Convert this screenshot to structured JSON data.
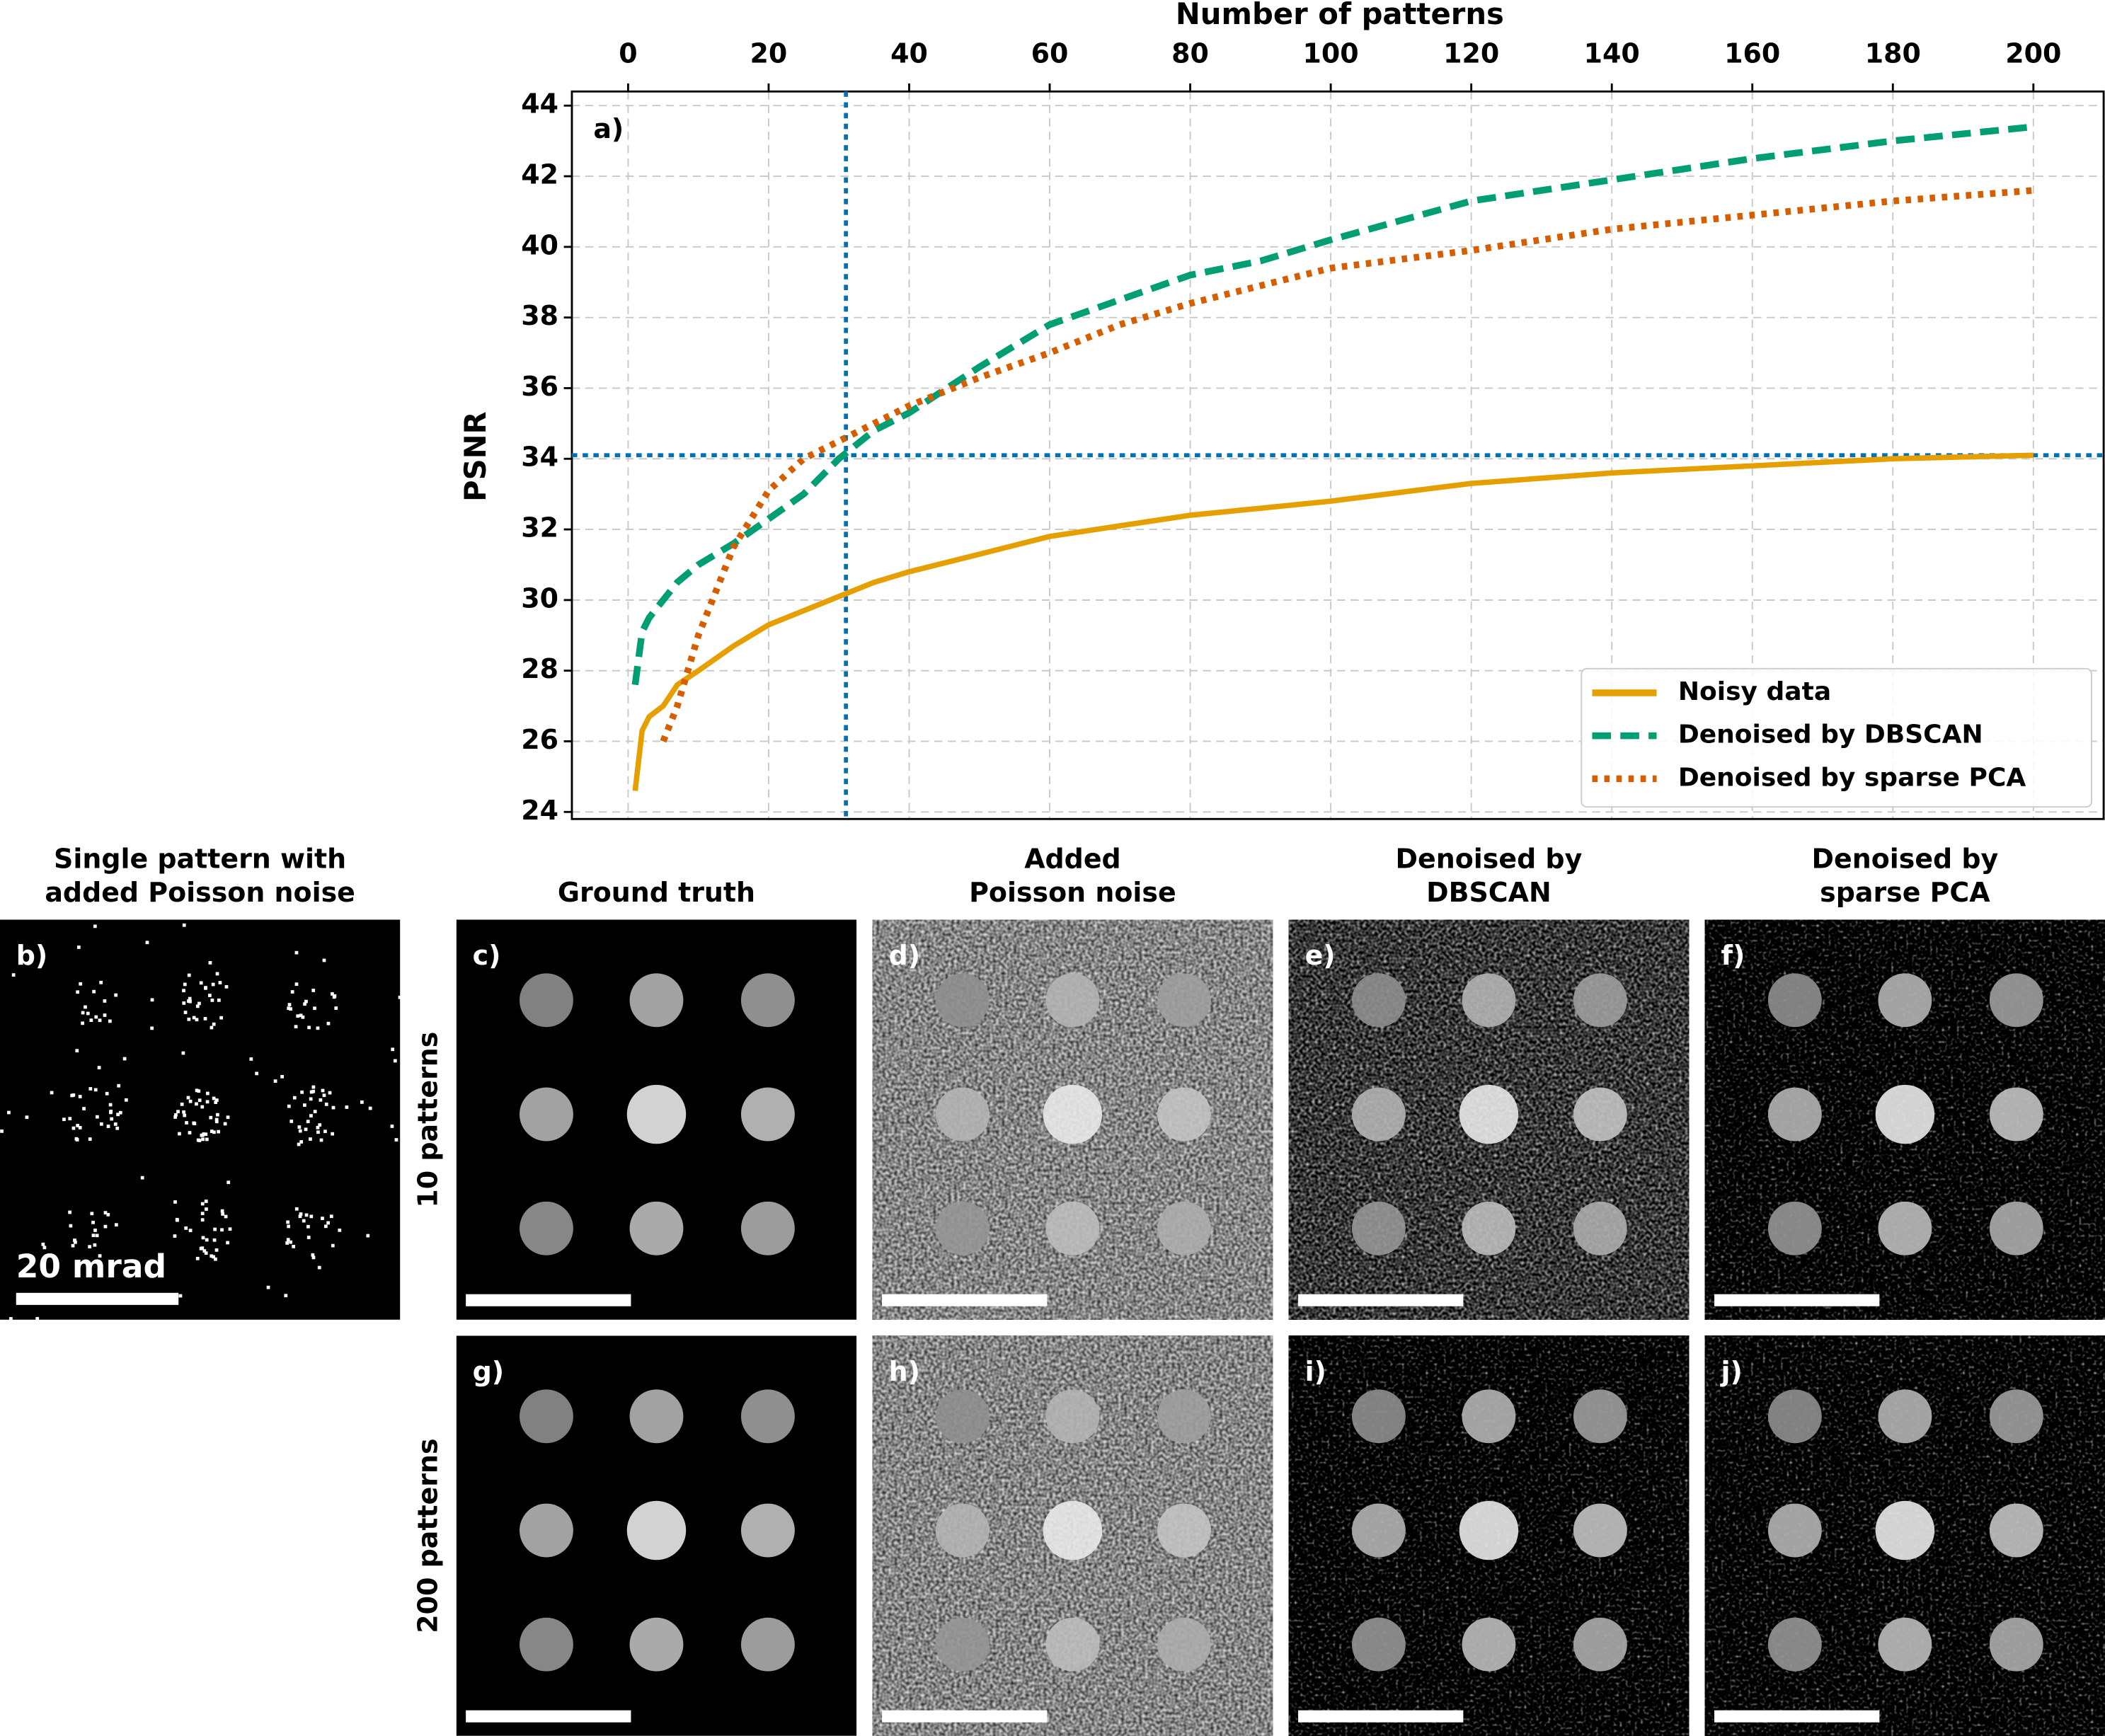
{
  "chart_data": {
    "type": "line",
    "panel_label": "a)",
    "x_label": "Number of patterns",
    "y_label": "PSNR",
    "x": [
      1,
      2,
      3,
      5,
      7,
      10,
      15,
      20,
      25,
      30,
      35,
      40,
      50,
      60,
      70,
      80,
      90,
      100,
      120,
      140,
      160,
      180,
      200
    ],
    "series": [
      {
        "name": "Noisy data",
        "color": "#e69f00",
        "style": "solid",
        "values": [
          24.6,
          26.3,
          26.7,
          27.0,
          27.6,
          28.0,
          28.7,
          29.3,
          29.7,
          30.1,
          30.5,
          30.8,
          31.3,
          31.8,
          32.1,
          32.4,
          32.6,
          32.8,
          33.3,
          33.6,
          33.8,
          34.0,
          34.1
        ]
      },
      {
        "name": "Denoised by DBSCAN",
        "color": "#009e73",
        "style": "dashed",
        "values": [
          27.6,
          29.1,
          29.5,
          30.0,
          30.5,
          31.0,
          31.6,
          32.3,
          33.0,
          34.0,
          34.8,
          35.3,
          36.6,
          37.8,
          38.5,
          39.2,
          39.6,
          40.2,
          41.3,
          41.9,
          42.5,
          43.0,
          43.4
        ]
      },
      {
        "name": "Denoised by sparse PCA",
        "color": "#d55e00",
        "style": "dotted",
        "values": [
          null,
          null,
          null,
          26.0,
          27.0,
          29.0,
          31.5,
          33.1,
          34.0,
          34.5,
          35.0,
          35.5,
          36.3,
          37.0,
          37.8,
          38.4,
          38.9,
          39.4,
          39.9,
          40.5,
          40.9,
          41.3,
          41.6
        ]
      }
    ],
    "vline": 31,
    "hline": 34.1,
    "ref_color": "#0072b2",
    "xlim": [
      -8,
      210
    ],
    "ylim": [
      23.8,
      44.4
    ],
    "xticks": [
      0,
      20,
      40,
      60,
      80,
      100,
      120,
      140,
      160,
      180,
      200
    ],
    "yticks": [
      24,
      26,
      28,
      30,
      32,
      34,
      36,
      38,
      40,
      42,
      44
    ],
    "grid": true,
    "legend": "lower right"
  },
  "column_titles": [
    [
      "Single pattern with",
      "added Poisson noise"
    ],
    [
      "Ground truth"
    ],
    [
      "Added",
      "Poisson noise"
    ],
    [
      "Denoised by",
      "DBSCAN"
    ],
    [
      "Denoised by",
      "sparse PCA"
    ]
  ],
  "row_titles": [
    "10 patterns",
    "200 patterns"
  ],
  "panel_labels": [
    "b)",
    "c)",
    "d)",
    "e)",
    "f)",
    "g)",
    "h)",
    "i)",
    "j)"
  ],
  "scale_bar_label": "20 mrad"
}
